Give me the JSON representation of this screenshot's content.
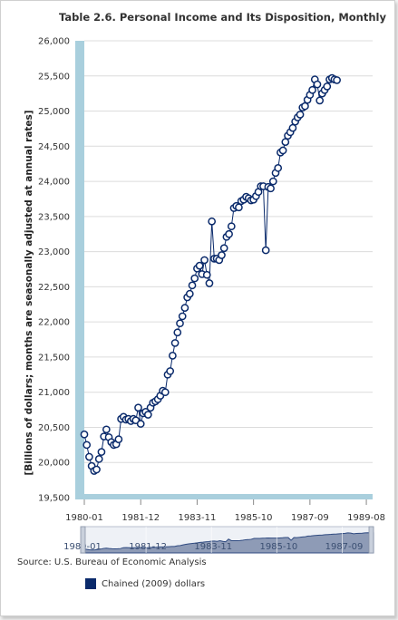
{
  "source_label": "Source: U.S. Bureau of Economic Analysis",
  "colors": {
    "series": "#0a2a6b",
    "axis_bar": "#a9cfdd",
    "navigator_fill": "#8e9bb6",
    "navigator_line": "#2f4a80"
  },
  "chart_data": {
    "type": "line",
    "title": "Table 2.6. Personal Income and Its Disposition, Monthly",
    "ylabel": "[Billions of dollars; months are seasonally adjusted at annual rates]",
    "xlabel": "",
    "ylim": [
      19500,
      26000
    ],
    "yticks": [
      "19,500",
      "20,000",
      "20,500",
      "21,000",
      "21,500",
      "22,000",
      "22,500",
      "23,000",
      "23,500",
      "24,000",
      "24,500",
      "25,000",
      "25,500",
      "26,000"
    ],
    "ytick_values": [
      19500,
      20000,
      20500,
      21000,
      21500,
      22000,
      22500,
      23000,
      23500,
      24000,
      24500,
      25000,
      25500,
      26000
    ],
    "xticks": [
      "1980-01",
      "1981-12",
      "1983-11",
      "1985-10",
      "1987-09",
      "1989-08"
    ],
    "xtick_index": [
      0,
      23,
      46,
      69,
      92,
      115
    ],
    "navigator_labels": [
      "1980-01",
      "1981-12",
      "1983-11",
      "1985-10",
      "1987-09"
    ],
    "grid": true,
    "legend": "bottom",
    "series": [
      {
        "name": "Chained (2009) dollars",
        "start": "1980-01",
        "frequency": "monthly",
        "values": [
          20400,
          20250,
          20080,
          19950,
          19880,
          19900,
          20050,
          20150,
          20370,
          20470,
          20360,
          20290,
          20250,
          20260,
          20330,
          20620,
          20650,
          20610,
          20620,
          20590,
          20620,
          20600,
          20780,
          20550,
          20700,
          20720,
          20680,
          20780,
          20850,
          20870,
          20900,
          20950,
          21020,
          21000,
          21250,
          21300,
          21520,
          21700,
          21850,
          21980,
          22080,
          22200,
          22350,
          22400,
          22520,
          22620,
          22760,
          22800,
          22680,
          22880,
          22670,
          22550,
          23430,
          22900,
          22900,
          22880,
          22950,
          23050,
          23210,
          23250,
          23360,
          23620,
          23650,
          23630,
          23720,
          23740,
          23780,
          23760,
          23730,
          23740,
          23790,
          23850,
          23930,
          23930,
          23020,
          23920,
          23900,
          24000,
          24120,
          24190,
          24410,
          24440,
          24560,
          24650,
          24700,
          24760,
          24850,
          24910,
          24950,
          25050,
          25070,
          25160,
          25230,
          25300,
          25450,
          25380,
          25150,
          25250,
          25300,
          25350,
          25450,
          25470,
          25450,
          25440
        ]
      }
    ]
  }
}
